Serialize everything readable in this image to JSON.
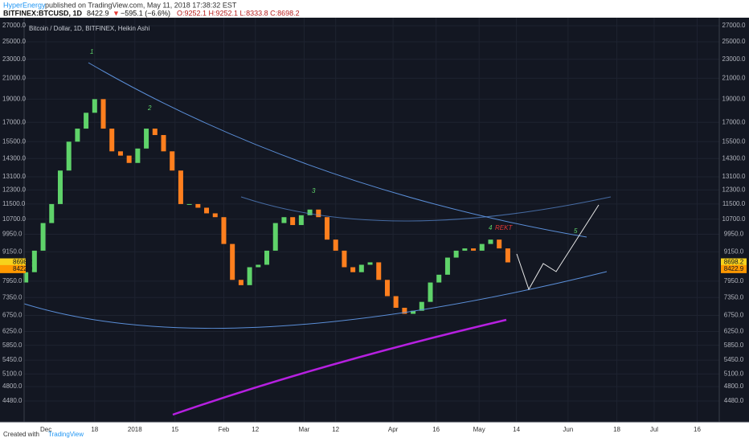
{
  "header": {
    "author": "HyperEnergy",
    "published": "published on TradingView.com, May 11, 2018 17:38:32 EST",
    "symbol": "BITFINEX:BTCUSD, 1D",
    "last": "8422.9",
    "arrow": "▼",
    "change": "−595.1 (−6.6%)",
    "ohlc": "O:9252.1 H:9252.1 L:8333.8 C:8698.2"
  },
  "footer": {
    "created": "Created with",
    "brand": "TradingView"
  },
  "chart_data": {
    "type": "candlestick",
    "title": "Bitcoin / Dollar, 1D, BITFINEX, Heikin Ashi",
    "log_scale": true,
    "grid": true,
    "up_color": "#5fd36a",
    "down_color": "#ff7f1e",
    "ylim": [
      4054,
      28059
    ],
    "yticks": [
      {
        "value": 27000,
        "label": "27000.0"
      },
      {
        "value": 25000,
        "label": "25000.0"
      },
      {
        "value": 23000,
        "label": "23000.0"
      },
      {
        "value": 21000,
        "label": "21000.0"
      },
      {
        "value": 19000,
        "label": "19000.0"
      },
      {
        "value": 17000,
        "label": "17000.0"
      },
      {
        "value": 15500,
        "label": "15500.0"
      },
      {
        "value": 14300,
        "label": "14300.0"
      },
      {
        "value": 13100,
        "label": "13100.0"
      },
      {
        "value": 12300,
        "label": "12300.0"
      },
      {
        "value": 11500,
        "label": "11500.0"
      },
      {
        "value": 10700,
        "label": "10700.0"
      },
      {
        "value": 9950,
        "label": "9950.0"
      },
      {
        "value": 9150,
        "label": "9150.0"
      },
      {
        "value": 7950,
        "label": "7950.0"
      },
      {
        "value": 7350,
        "label": "7350.0"
      },
      {
        "value": 6750,
        "label": "6750.0"
      },
      {
        "value": 6250,
        "label": "6250.0"
      },
      {
        "value": 5850,
        "label": "5850.0"
      },
      {
        "value": 5450,
        "label": "5450.0"
      },
      {
        "value": 5100,
        "label": "5100.0"
      },
      {
        "value": 4800,
        "label": "4800.0"
      },
      {
        "value": 4480,
        "label": "4480.0"
      }
    ],
    "xlim": [
      -7.6,
      234.7
    ],
    "xticks": [
      {
        "value": 0,
        "label": "Dec"
      },
      {
        "value": 17,
        "label": "18"
      },
      {
        "value": 31,
        "label": "2018"
      },
      {
        "value": 45,
        "label": "15"
      },
      {
        "value": 62,
        "label": "Feb"
      },
      {
        "value": 73,
        "label": "12"
      },
      {
        "value": 90,
        "label": "Mar"
      },
      {
        "value": 101,
        "label": "12"
      },
      {
        "value": 121,
        "label": "Apr"
      },
      {
        "value": 136,
        "label": "16"
      },
      {
        "value": 151,
        "label": "May"
      },
      {
        "value": 164,
        "label": "14"
      },
      {
        "value": 182,
        "label": "Jun"
      },
      {
        "value": 199,
        "label": "18"
      },
      {
        "value": 212,
        "label": "Jul"
      },
      {
        "value": 227,
        "label": "16"
      }
    ],
    "x": [
      -7,
      -4,
      -1,
      2,
      5,
      8,
      11,
      14,
      17,
      20,
      23,
      26,
      29,
      32,
      35,
      38,
      41,
      44,
      47,
      50,
      53,
      56,
      59,
      62,
      65,
      68,
      71,
      74,
      77,
      80,
      83,
      86,
      89,
      92,
      95,
      98,
      101,
      104,
      107,
      110,
      113,
      116,
      119,
      122,
      125,
      128,
      131,
      134,
      137,
      140,
      143,
      146,
      149,
      152,
      155,
      158,
      161
    ],
    "open": [
      7900,
      8300,
      9200,
      10500,
      11500,
      13500,
      15500,
      16500,
      17800,
      19000,
      16500,
      14800,
      14500,
      14000,
      15000,
      16500,
      16000,
      14800,
      13500,
      11500,
      11500,
      11300,
      11000,
      10800,
      9500,
      8000,
      7800,
      8500,
      8600,
      9200,
      10500,
      10800,
      10400,
      10900,
      11200,
      10800,
      9700,
      9200,
      8500,
      8300,
      8600,
      8700,
      8000,
      7400,
      7000,
      6800,
      6900,
      7200,
      7900,
      8200,
      8900,
      9200,
      9300,
      9200,
      9500,
      9700,
      9300
    ],
    "close": [
      8300,
      9200,
      10500,
      11500,
      13500,
      15500,
      16500,
      17800,
      19000,
      16500,
      14800,
      14500,
      14000,
      15000,
      16500,
      16000,
      14800,
      13500,
      11500,
      11500,
      11300,
      11000,
      10800,
      9500,
      8000,
      7800,
      8500,
      8600,
      9200,
      10500,
      10800,
      10400,
      10900,
      11200,
      10800,
      9700,
      9200,
      8500,
      8300,
      8600,
      8700,
      8000,
      7400,
      7000,
      6800,
      6900,
      7200,
      7900,
      8200,
      8900,
      9200,
      9300,
      9200,
      9500,
      9700,
      9300,
      8698.2
    ],
    "price_labels": [
      {
        "value": 8698.2,
        "label": "8698.2"
      },
      {
        "value": 8422.9,
        "label": "8422.9"
      }
    ],
    "annotations": [
      "1",
      "2",
      "3",
      "4",
      "REKT",
      "5"
    ]
  }
}
